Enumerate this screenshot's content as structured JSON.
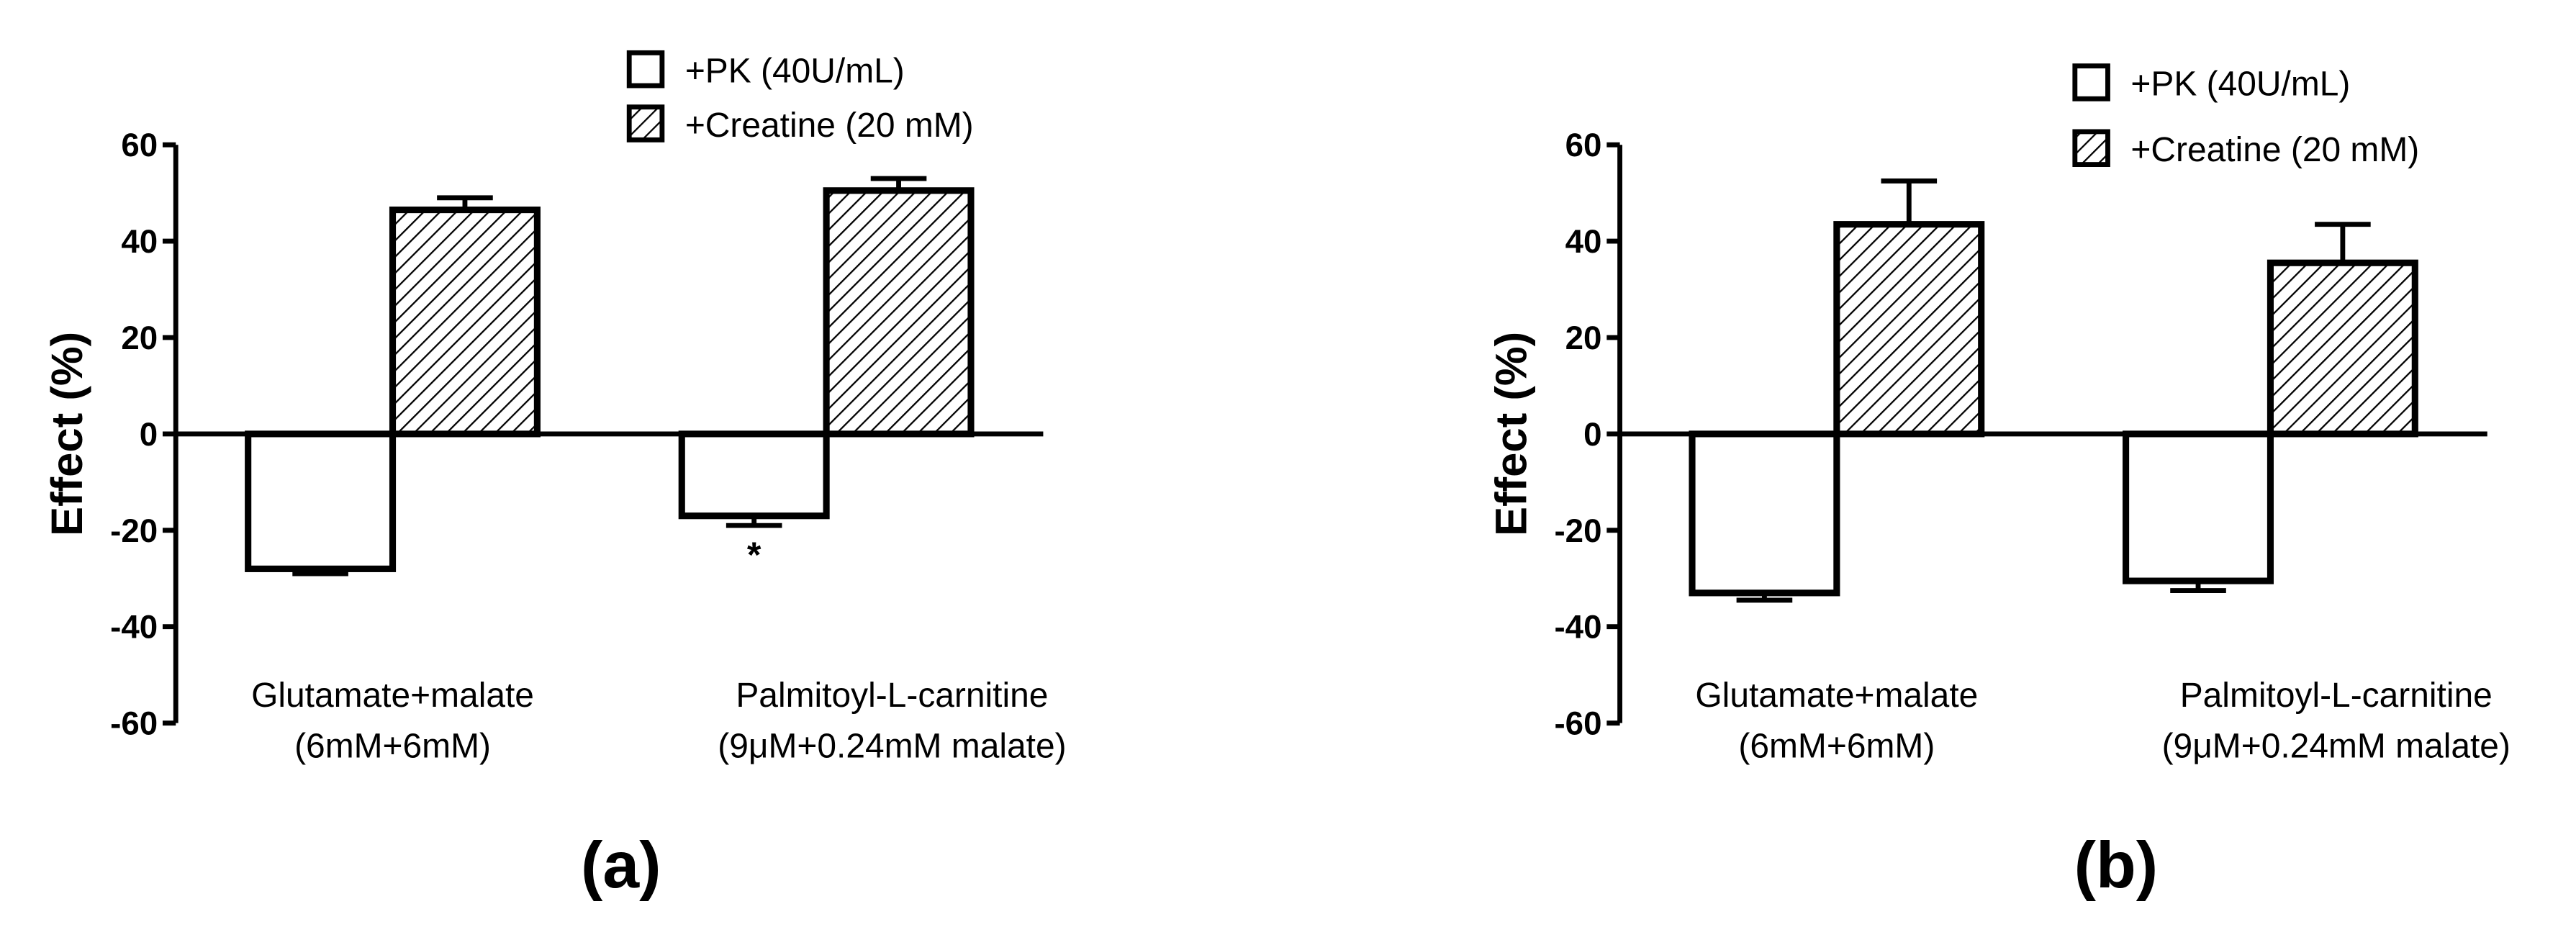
{
  "chart_data": [
    {
      "type": "bar",
      "label": "(a)",
      "y_label": "Effect (%)",
      "categories": [
        [
          "Glutamate+malate",
          "(6mM+6mM)"
        ],
        [
          "Palmitoyl-L-carnitine",
          "(9μM+0.24mM malate)"
        ]
      ],
      "series": [
        {
          "name": "+PK (40U/mL)",
          "color": "#ffffff",
          "hatch": false,
          "values": [
            -28,
            -17
          ],
          "errors": [
            1,
            2
          ]
        },
        {
          "name": "+Creatine (20 mM)",
          "color": "#ffffff",
          "hatch": true,
          "values": [
            46.5,
            50.5
          ],
          "errors": [
            2.5,
            2.5
          ]
        }
      ],
      "annotation": "*",
      "ylim": [
        -60,
        60
      ],
      "yticks": [
        -60,
        -40,
        -20,
        0,
        20,
        40,
        60
      ]
    },
    {
      "type": "bar",
      "label": "(b)",
      "y_label": "Effect (%)",
      "categories": [
        [
          "Glutamate+malate",
          "(6mM+6mM)"
        ],
        [
          "Palmitoyl-L-carnitine",
          "(9μM+0.24mM malate)"
        ]
      ],
      "series": [
        {
          "name": "+PK (40U/mL)",
          "color": "#ffffff",
          "hatch": false,
          "values": [
            -33,
            -30.5
          ],
          "errors": [
            1.5,
            2
          ]
        },
        {
          "name": "+Creatine (20 mM)",
          "color": "#ffffff",
          "hatch": true,
          "values": [
            43.5,
            35.5
          ],
          "errors": [
            9,
            8
          ]
        }
      ],
      "ylim": [
        -60,
        60
      ],
      "yticks": [
        -60,
        -40,
        -20,
        0,
        20,
        40,
        60
      ]
    }
  ]
}
